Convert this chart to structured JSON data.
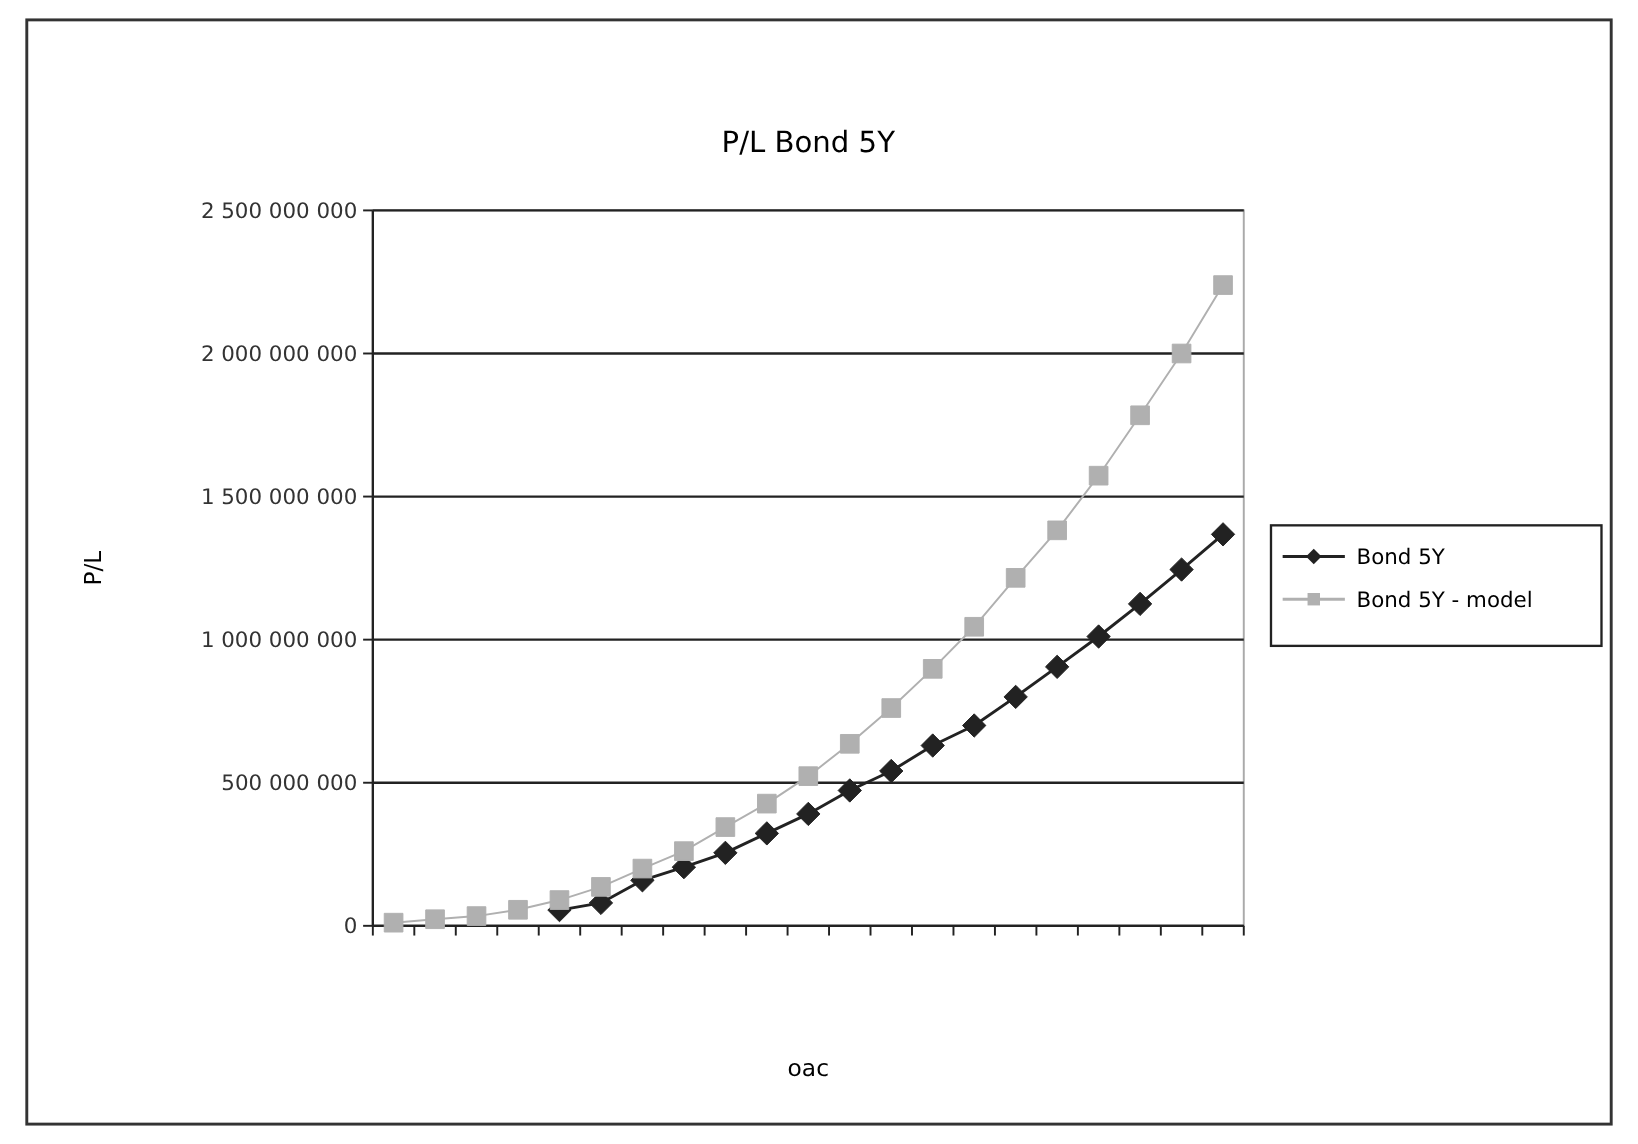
{
  "chart_data": {
    "type": "line",
    "title": "P/L Bond 5Y",
    "xlabel": "oac",
    "ylabel": "P/L",
    "categories": [
      null,
      null,
      null,
      null,
      null,
      null,
      null,
      null,
      null,
      null,
      null,
      null,
      null,
      null,
      null,
      null,
      null,
      null,
      null,
      null,
      null
    ],
    "series": [
      {
        "name": "Bond 5Y",
        "color": "#222222",
        "marker": "diamond",
        "values": [
          null,
          null,
          null,
          null,
          55000000,
          80000000,
          159000000,
          205000000,
          255000000,
          323000000,
          391000000,
          473000000,
          541000000,
          630000000,
          700000000,
          800000000,
          905000000,
          1011000000,
          1125000000,
          1245000000,
          1368000000
        ]
      },
      {
        "name": "Bond 5Y - model",
        "color": "#b0b0b0",
        "marker": "square",
        "values": [
          11000000,
          23000000,
          34000000,
          56000000,
          90000000,
          136000000,
          200000000,
          261000000,
          345000000,
          427000000,
          523000000,
          636000000,
          761000000,
          898000000,
          1045000000,
          1216000000,
          1382000000,
          1573000000,
          1784000000,
          2000000000,
          2239000000
        ]
      }
    ],
    "ylim": [
      0,
      2500000000
    ],
    "yticks": [
      {
        "value": 0,
        "label": "0"
      },
      {
        "value": 500000000,
        "label": "500 000 000"
      },
      {
        "value": 1000000000,
        "label": "1 000 000 000"
      },
      {
        "value": 1500000000,
        "label": "1 500 000 000"
      },
      {
        "value": 2000000000,
        "label": "2 000 000 000"
      },
      {
        "value": 2500000000,
        "label": "2 500 000 000"
      }
    ],
    "grid": "y",
    "legend": "right",
    "line_style": "solid"
  }
}
